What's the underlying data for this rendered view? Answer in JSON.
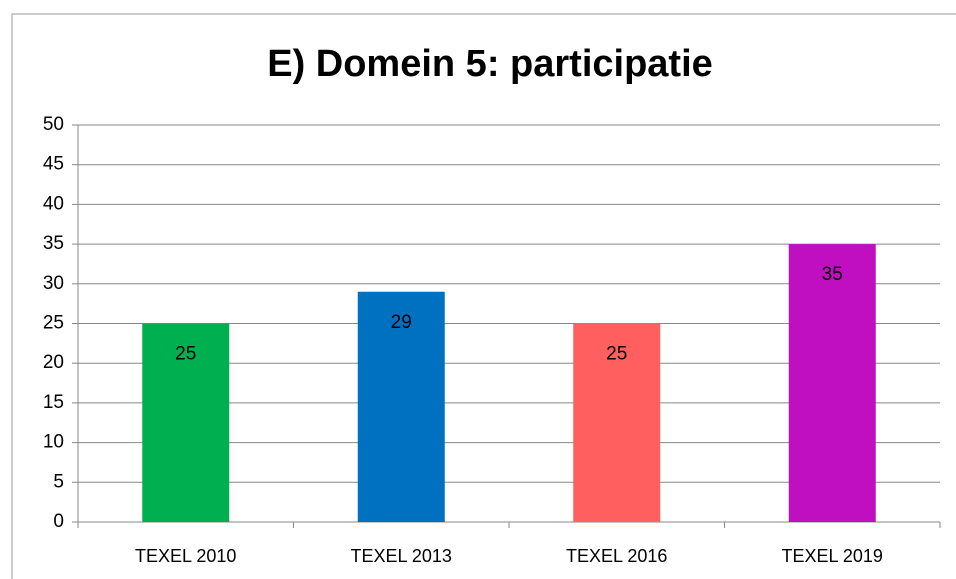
{
  "chart_data": {
    "type": "bar",
    "title": "E) Domein 5: participatie",
    "categories": [
      "TEXEL 2010",
      "TEXEL 2013",
      "TEXEL 2016",
      "TEXEL 2019"
    ],
    "values": [
      25,
      29,
      25,
      35
    ],
    "colors": [
      "#00b050",
      "#0070c0",
      "#ff5f5f",
      "#c00fc0"
    ],
    "ylim": [
      0,
      50
    ],
    "yticks": [
      0,
      5,
      10,
      15,
      20,
      25,
      30,
      35,
      40,
      45,
      50
    ],
    "grid": true
  }
}
